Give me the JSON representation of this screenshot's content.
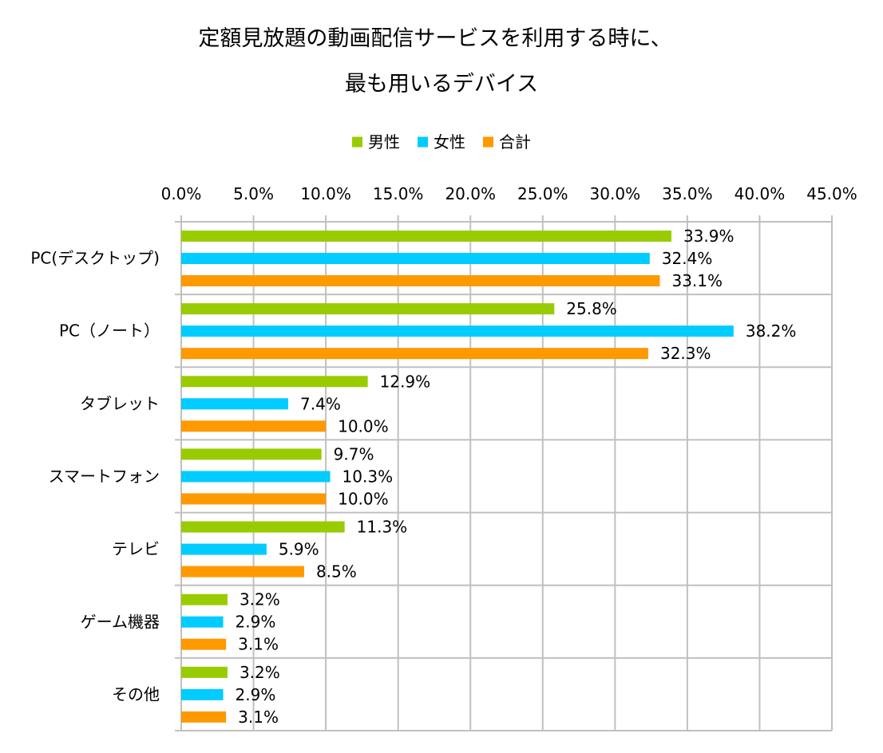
{
  "chart_data": {
    "type": "bar",
    "orientation": "horizontal",
    "title_lines": [
      "定額見放題の動画配信サービスを利用する時に、",
      "最も用いるデバイス"
    ],
    "xlabel": "",
    "ylabel": "",
    "xlim": [
      0,
      45
    ],
    "x_ticks": [
      "0.0%",
      "5.0%",
      "10.0%",
      "15.0%",
      "20.0%",
      "25.0%",
      "30.0%",
      "35.0%",
      "40.0%",
      "45.0%"
    ],
    "grid": true,
    "legend_position": "top",
    "categories": [
      "PC(デスクトップ)",
      "PC（ノート）",
      "タブレット",
      "スマートフォン",
      "テレビ",
      "ゲーム機器",
      "その他"
    ],
    "series": [
      {
        "name": "男性",
        "color": "#99cc00",
        "values": [
          33.9,
          25.8,
          12.9,
          9.7,
          11.3,
          3.2,
          3.2
        ],
        "labels": [
          "33.9%",
          "25.8%",
          "12.9%",
          "9.7%",
          "11.3%",
          "3.2%",
          "3.2%"
        ]
      },
      {
        "name": "女性",
        "color": "#00ccff",
        "values": [
          32.4,
          38.2,
          7.4,
          10.3,
          5.9,
          2.9,
          2.9
        ],
        "labels": [
          "32.4%",
          "38.2%",
          "7.4%",
          "10.3%",
          "5.9%",
          "2.9%",
          "2.9%"
        ]
      },
      {
        "name": "合計",
        "color": "#ff9900",
        "values": [
          33.1,
          32.3,
          10.0,
          10.0,
          8.5,
          3.1,
          3.1
        ],
        "labels": [
          "33.1%",
          "32.3%",
          "10.0%",
          "10.0%",
          "8.5%",
          "3.1%",
          "3.1%"
        ]
      }
    ],
    "colors": {
      "grid": "#c0c0c0",
      "axis": "#c0c0c0",
      "text": "#000000"
    }
  }
}
